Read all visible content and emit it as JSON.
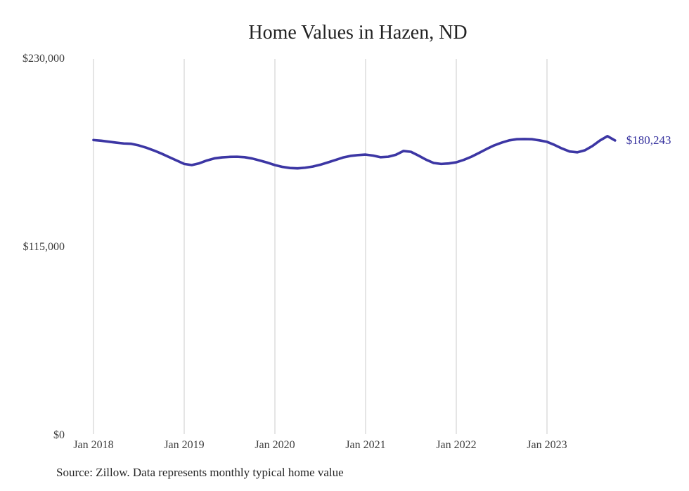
{
  "chart_data": {
    "type": "line",
    "title": "Home Values in Hazen, ND",
    "xlabel": "",
    "ylabel": "",
    "ylim": [
      0,
      230000
    ],
    "grid": "vertical-only",
    "legend": "none",
    "line_color": "#3c36a4",
    "end_label_color": "#34309d",
    "gridline_color": "#cbcbcb",
    "end_label": "$180,243",
    "end_value": 180243,
    "yticks": [
      {
        "value": 230000,
        "label": "$230,000"
      },
      {
        "value": 115000,
        "label": "$115,000"
      },
      {
        "value": 0,
        "label": "$0"
      }
    ],
    "xticks": [
      {
        "month_index": 0,
        "label": "Jan 2018"
      },
      {
        "month_index": 12,
        "label": "Jan 2019"
      },
      {
        "month_index": 24,
        "label": "Jan 2020"
      },
      {
        "month_index": 36,
        "label": "Jan 2021"
      },
      {
        "month_index": 48,
        "label": "Jan 2022"
      },
      {
        "month_index": 60,
        "label": "Jan 2023"
      }
    ],
    "series": [
      {
        "name": "Monthly typical home value",
        "x": [
          "2018-01",
          "2018-02",
          "2018-03",
          "2018-04",
          "2018-05",
          "2018-06",
          "2018-07",
          "2018-08",
          "2018-09",
          "2018-10",
          "2018-11",
          "2018-12",
          "2019-01",
          "2019-02",
          "2019-03",
          "2019-04",
          "2019-05",
          "2019-06",
          "2019-07",
          "2019-08",
          "2019-09",
          "2019-10",
          "2019-11",
          "2019-12",
          "2020-01",
          "2020-02",
          "2020-03",
          "2020-04",
          "2020-05",
          "2020-06",
          "2020-07",
          "2020-08",
          "2020-09",
          "2020-10",
          "2020-11",
          "2020-12",
          "2021-01",
          "2021-02",
          "2021-03",
          "2021-04",
          "2021-05",
          "2021-06",
          "2021-07",
          "2021-08",
          "2021-09",
          "2021-10",
          "2021-11",
          "2021-12",
          "2022-01",
          "2022-02",
          "2022-03",
          "2022-04",
          "2022-05",
          "2022-06",
          "2022-07",
          "2022-08",
          "2022-09",
          "2022-10",
          "2022-11",
          "2022-12",
          "2023-01",
          "2023-02",
          "2023-03",
          "2023-04",
          "2023-05",
          "2023-06",
          "2023-07",
          "2023-08",
          "2023-09",
          "2023-10"
        ],
        "values": [
          180500,
          180100,
          179500,
          178900,
          178400,
          178200,
          177200,
          175800,
          174100,
          172200,
          170100,
          168000,
          165900,
          165200,
          166300,
          168000,
          169300,
          169900,
          170200,
          170300,
          170000,
          169200,
          168000,
          166700,
          165200,
          164100,
          163400,
          163200,
          163600,
          164300,
          165400,
          166800,
          168300,
          169800,
          170800,
          171300,
          171600,
          171000,
          170000,
          170300,
          171500,
          173800,
          173300,
          171000,
          168500,
          166500,
          165900,
          166200,
          166900,
          168400,
          170300,
          172600,
          175000,
          177200,
          178900,
          180300,
          181000,
          181100,
          181000,
          180300,
          179400,
          177500,
          175300,
          173500,
          173000,
          174200,
          176800,
          180200,
          182900,
          180243
        ]
      }
    ]
  },
  "source": {
    "text": "Source: Zillow. Data represents monthly typical home value"
  }
}
